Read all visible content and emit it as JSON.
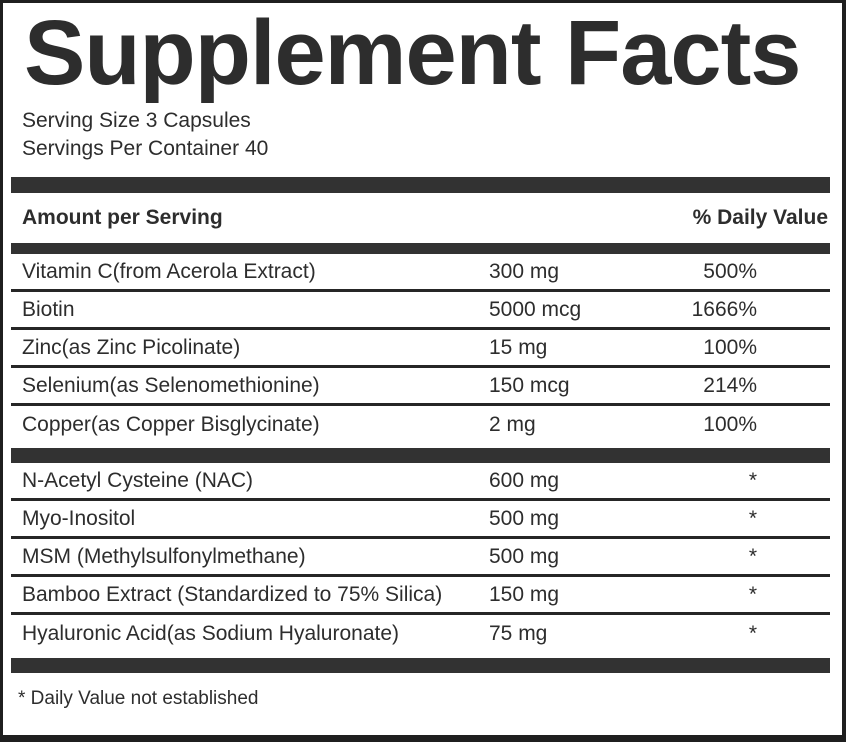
{
  "title": "Supplement Facts",
  "serving": {
    "size": "Serving Size 3 Capsules",
    "per_container": "Servings Per Container 40"
  },
  "table": {
    "amount_header": "Amount per Serving",
    "dv_header": "% Daily Value",
    "sections": [
      {
        "rows": [
          {
            "name": "Vitamin C(from Acerola Extract)",
            "amount": "300 mg",
            "dv": "500%"
          },
          {
            "name": "Biotin",
            "amount": "5000 mcg",
            "dv": "1666%"
          },
          {
            "name": "Zinc(as Zinc Picolinate)",
            "amount": "15 mg",
            "dv": "100%"
          },
          {
            "name": "Selenium(as Selenomethionine)",
            "amount": "150 mcg",
            "dv": "214%"
          },
          {
            "name": "Copper(as Copper Bisglycinate)",
            "amount": "2 mg",
            "dv": "100%"
          }
        ]
      },
      {
        "rows": [
          {
            "name": "N-Acetyl Cysteine (NAC)",
            "amount": "600 mg",
            "dv": "*"
          },
          {
            "name": "Myo-Inositol",
            "amount": "500 mg",
            "dv": "*"
          },
          {
            "name": "MSM (Methylsulfonylmethane)",
            "amount": "500 mg",
            "dv": "*"
          },
          {
            "name": "Bamboo Extract (Standardized to 75% Silica)",
            "amount": "150 mg",
            "dv": "*"
          },
          {
            "name": "Hyaluronic Acid(as Sodium Hyaluronate)",
            "amount": "75 mg",
            "dv": "*"
          }
        ]
      }
    ]
  },
  "footnote": "* Daily Value not established",
  "colors": {
    "text": "#2d2d2d",
    "bar": "#323232",
    "separator": "#262626",
    "border": "#1f1f1f",
    "background": "#ffffff"
  }
}
